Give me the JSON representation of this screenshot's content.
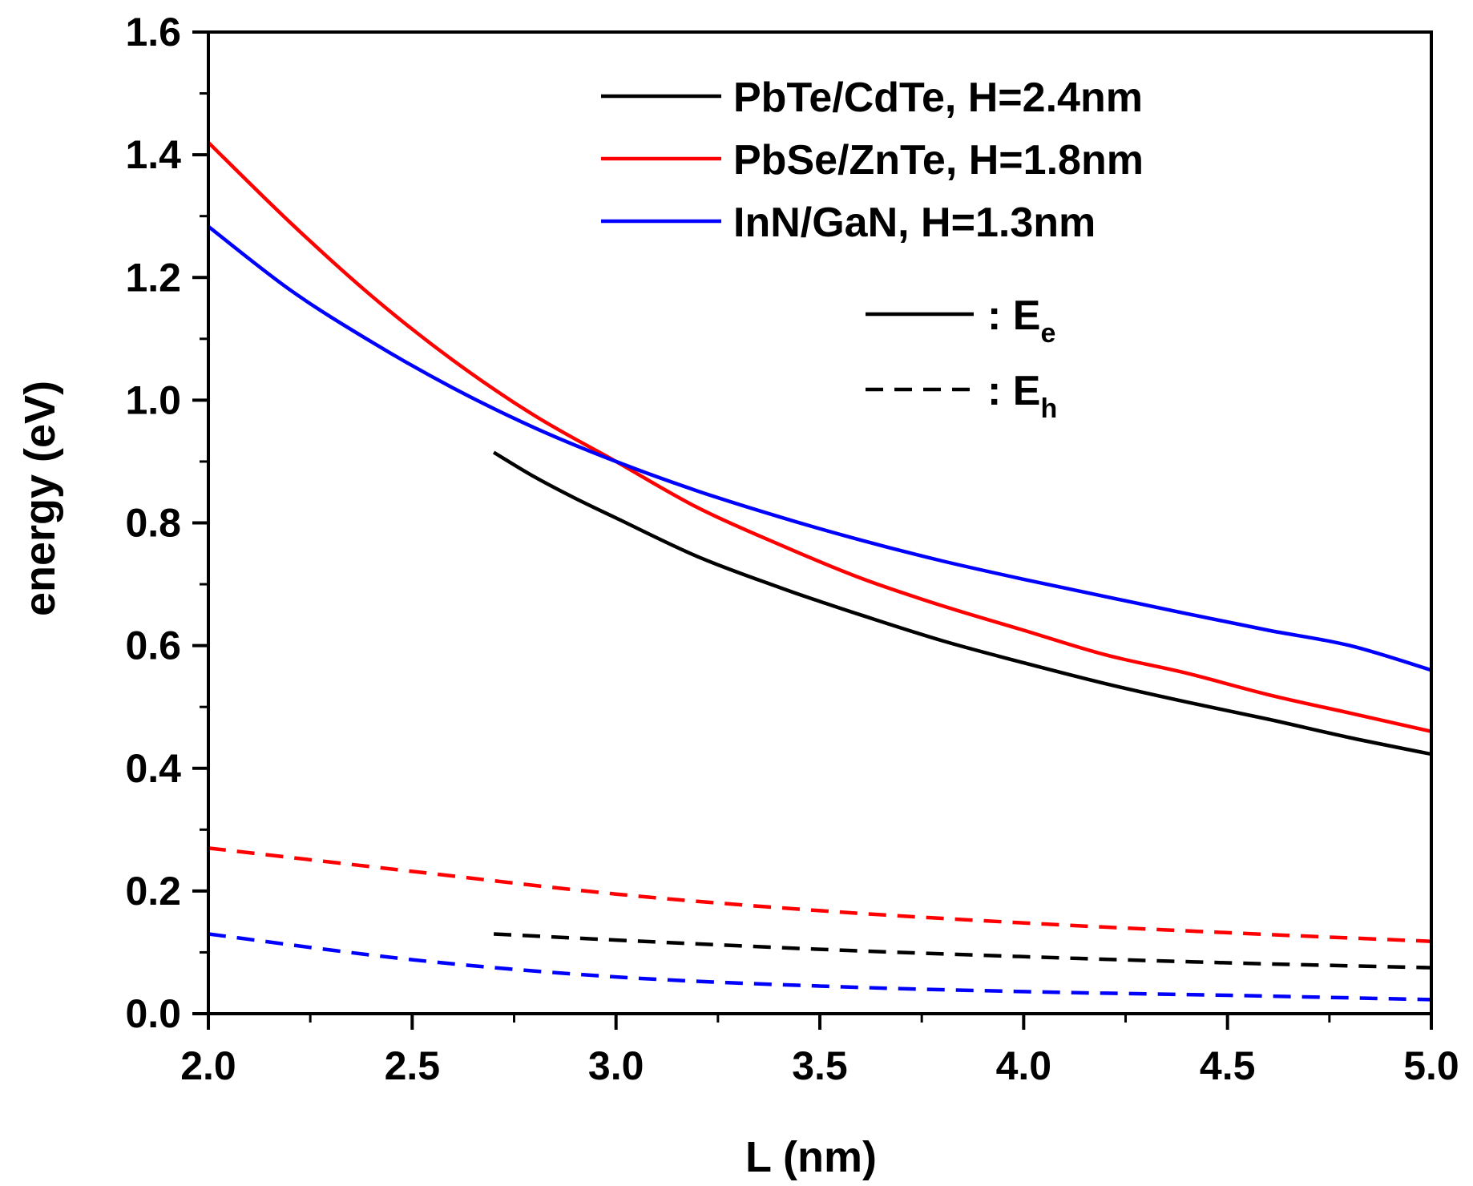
{
  "chart_data": {
    "type": "line",
    "title": "",
    "xlabel": "L (nm)",
    "ylabel": "energy (eV)",
    "xlim": [
      2.0,
      5.0
    ],
    "ylim": [
      0.0,
      1.6
    ],
    "xticks": [
      "2.0",
      "2.5",
      "3.0",
      "3.5",
      "4.0",
      "4.5",
      "5.0"
    ],
    "yticks": [
      "0.0",
      "0.2",
      "0.4",
      "0.6",
      "0.8",
      "1.0",
      "1.2",
      "1.4",
      "1.6"
    ],
    "grid": false,
    "legend_position": "top-right",
    "series": [
      {
        "name": "PbTe/CdTe, H=2.4nm",
        "color": "#000000",
        "Ee": {
          "x": [
            2.7,
            2.8,
            2.9,
            3.0,
            3.2,
            3.4,
            3.5,
            3.6,
            3.8,
            4.0,
            4.2,
            4.4,
            4.6,
            4.8,
            5.0
          ],
          "y": [
            0.915,
            0.875,
            0.84,
            0.808,
            0.745,
            0.695,
            0.672,
            0.65,
            0.608,
            0.572,
            0.538,
            0.508,
            0.48,
            0.45,
            0.423
          ]
        },
        "Eh": {
          "x": [
            2.7,
            3.0,
            3.5,
            4.0,
            4.5,
            5.0
          ],
          "y": [
            0.13,
            0.12,
            0.105,
            0.093,
            0.083,
            0.075
          ]
        }
      },
      {
        "name": "PbSe/ZnTe, H=1.8nm",
        "color": "#ff0000",
        "Ee": {
          "x": [
            2.0,
            2.2,
            2.4,
            2.6,
            2.8,
            3.0,
            3.2,
            3.4,
            3.6,
            3.8,
            4.0,
            4.2,
            4.4,
            4.6,
            4.8,
            5.0
          ],
          "y": [
            1.42,
            1.29,
            1.17,
            1.065,
            0.975,
            0.9,
            0.825,
            0.765,
            0.71,
            0.665,
            0.625,
            0.585,
            0.555,
            0.52,
            0.49,
            0.46
          ]
        },
        "Eh": {
          "x": [
            2.0,
            2.5,
            3.0,
            3.5,
            4.0,
            4.5,
            5.0
          ],
          "y": [
            0.27,
            0.232,
            0.195,
            0.168,
            0.148,
            0.132,
            0.118
          ]
        }
      },
      {
        "name": "InN/GaN, H=1.3nm",
        "color": "#0000ff",
        "Ee": {
          "x": [
            2.0,
            2.2,
            2.4,
            2.6,
            2.8,
            3.0,
            3.2,
            3.4,
            3.6,
            3.8,
            4.0,
            4.2,
            4.4,
            4.6,
            4.8,
            5.0
          ],
          "y": [
            1.283,
            1.18,
            1.095,
            1.02,
            0.955,
            0.9,
            0.852,
            0.81,
            0.772,
            0.738,
            0.708,
            0.68,
            0.652,
            0.625,
            0.6,
            0.56
          ]
        },
        "Eh": {
          "x": [
            2.0,
            2.5,
            3.0,
            3.5,
            4.0,
            4.5,
            5.0
          ],
          "y": [
            0.13,
            0.088,
            0.06,
            0.045,
            0.036,
            0.03,
            0.023
          ]
        }
      }
    ],
    "style_legend": [
      {
        "line": "solid",
        "label": ": E",
        "sub": "e"
      },
      {
        "line": "dashed",
        "label": ": E",
        "sub": "h"
      }
    ]
  }
}
